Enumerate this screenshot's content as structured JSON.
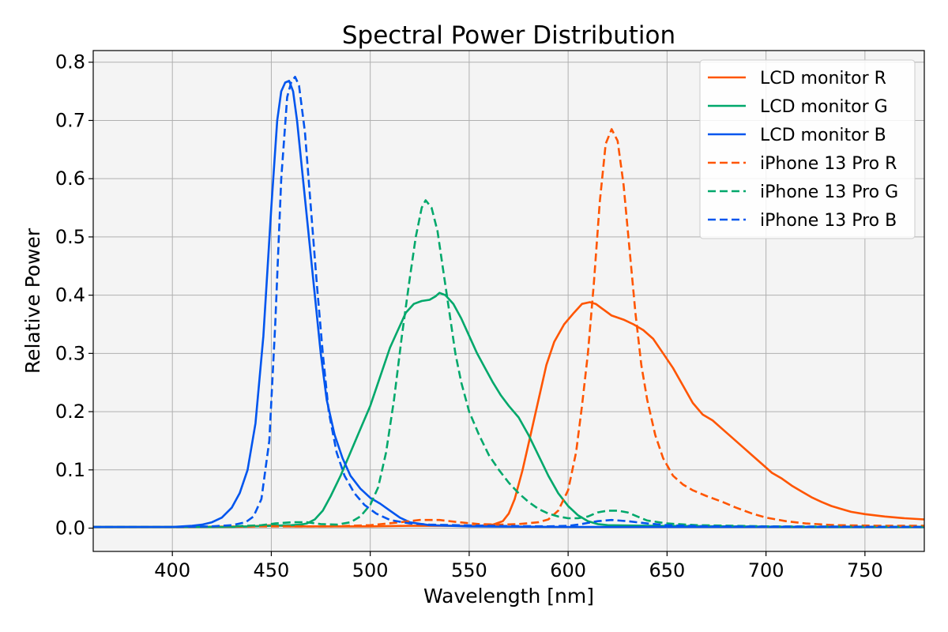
{
  "chart_data": {
    "type": "line",
    "title": "Spectral Power Distribution",
    "xlabel": "Wavelength [nm]",
    "ylabel": "Relative Power",
    "xlim": [
      360,
      780
    ],
    "ylim": [
      -0.04,
      0.82
    ],
    "xticks": [
      "400",
      "450",
      "500",
      "550",
      "600",
      "650",
      "700",
      "750"
    ],
    "yticks": [
      "0.0",
      "0.1",
      "0.2",
      "0.3",
      "0.4",
      "0.5",
      "0.6",
      "0.7",
      "0.8"
    ],
    "grid": true,
    "legend_position": "top-right",
    "series": [
      {
        "name": "LCD monitor R",
        "color": "#ff5500",
        "dash": "solid",
        "points": [
          [
            360,
            0.002
          ],
          [
            400,
            0.002
          ],
          [
            440,
            0.003
          ],
          [
            450,
            0.005
          ],
          [
            460,
            0.003
          ],
          [
            480,
            0.003
          ],
          [
            500,
            0.003
          ],
          [
            520,
            0.004
          ],
          [
            540,
            0.004
          ],
          [
            555,
            0.004
          ],
          [
            562,
            0.006
          ],
          [
            567,
            0.012
          ],
          [
            570,
            0.025
          ],
          [
            573,
            0.05
          ],
          [
            577,
            0.1
          ],
          [
            581,
            0.16
          ],
          [
            585,
            0.22
          ],
          [
            589,
            0.28
          ],
          [
            593,
            0.32
          ],
          [
            598,
            0.35
          ],
          [
            603,
            0.37
          ],
          [
            607,
            0.385
          ],
          [
            611,
            0.388
          ],
          [
            614,
            0.385
          ],
          [
            618,
            0.375
          ],
          [
            622,
            0.365
          ],
          [
            628,
            0.358
          ],
          [
            633,
            0.35
          ],
          [
            638,
            0.34
          ],
          [
            643,
            0.325
          ],
          [
            648,
            0.3
          ],
          [
            653,
            0.275
          ],
          [
            658,
            0.245
          ],
          [
            663,
            0.215
          ],
          [
            668,
            0.195
          ],
          [
            673,
            0.185
          ],
          [
            678,
            0.17
          ],
          [
            683,
            0.155
          ],
          [
            688,
            0.14
          ],
          [
            693,
            0.125
          ],
          [
            698,
            0.11
          ],
          [
            703,
            0.095
          ],
          [
            708,
            0.085
          ],
          [
            713,
            0.073
          ],
          [
            718,
            0.063
          ],
          [
            723,
            0.053
          ],
          [
            728,
            0.045
          ],
          [
            733,
            0.038
          ],
          [
            738,
            0.033
          ],
          [
            743,
            0.028
          ],
          [
            750,
            0.024
          ],
          [
            760,
            0.02
          ],
          [
            770,
            0.017
          ],
          [
            780,
            0.015
          ]
        ]
      },
      {
        "name": "LCD monitor G",
        "color": "#00a86b",
        "dash": "solid",
        "points": [
          [
            360,
            0.002
          ],
          [
            400,
            0.002
          ],
          [
            430,
            0.002
          ],
          [
            440,
            0.003
          ],
          [
            450,
            0.004
          ],
          [
            460,
            0.005
          ],
          [
            465,
            0.006
          ],
          [
            468,
            0.008
          ],
          [
            472,
            0.015
          ],
          [
            476,
            0.03
          ],
          [
            480,
            0.055
          ],
          [
            485,
            0.09
          ],
          [
            490,
            0.13
          ],
          [
            495,
            0.17
          ],
          [
            500,
            0.21
          ],
          [
            505,
            0.26
          ],
          [
            510,
            0.31
          ],
          [
            514,
            0.34
          ],
          [
            518,
            0.37
          ],
          [
            522,
            0.385
          ],
          [
            526,
            0.39
          ],
          [
            530,
            0.392
          ],
          [
            533,
            0.398
          ],
          [
            535,
            0.404
          ],
          [
            538,
            0.4
          ],
          [
            542,
            0.385
          ],
          [
            546,
            0.36
          ],
          [
            550,
            0.33
          ],
          [
            554,
            0.3
          ],
          [
            558,
            0.275
          ],
          [
            562,
            0.25
          ],
          [
            566,
            0.228
          ],
          [
            570,
            0.21
          ],
          [
            575,
            0.19
          ],
          [
            580,
            0.16
          ],
          [
            585,
            0.125
          ],
          [
            590,
            0.09
          ],
          [
            595,
            0.06
          ],
          [
            600,
            0.038
          ],
          [
            605,
            0.022
          ],
          [
            610,
            0.012
          ],
          [
            615,
            0.007
          ],
          [
            620,
            0.005
          ],
          [
            640,
            0.004
          ],
          [
            680,
            0.003
          ],
          [
            720,
            0.002
          ],
          [
            780,
            0.002
          ]
        ]
      },
      {
        "name": "LCD monitor B",
        "color": "#0055ee",
        "dash": "solid",
        "points": [
          [
            360,
            0.002
          ],
          [
            400,
            0.002
          ],
          [
            410,
            0.004
          ],
          [
            415,
            0.006
          ],
          [
            420,
            0.01
          ],
          [
            425,
            0.018
          ],
          [
            430,
            0.035
          ],
          [
            434,
            0.06
          ],
          [
            438,
            0.1
          ],
          [
            442,
            0.18
          ],
          [
            446,
            0.33
          ],
          [
            450,
            0.55
          ],
          [
            453,
            0.7
          ],
          [
            455,
            0.75
          ],
          [
            457,
            0.765
          ],
          [
            459,
            0.768
          ],
          [
            461,
            0.75
          ],
          [
            463,
            0.7
          ],
          [
            466,
            0.6
          ],
          [
            469,
            0.5
          ],
          [
            472,
            0.4
          ],
          [
            475,
            0.3
          ],
          [
            478,
            0.22
          ],
          [
            482,
            0.16
          ],
          [
            486,
            0.12
          ],
          [
            490,
            0.09
          ],
          [
            495,
            0.068
          ],
          [
            500,
            0.052
          ],
          [
            505,
            0.042
          ],
          [
            510,
            0.03
          ],
          [
            515,
            0.018
          ],
          [
            520,
            0.01
          ],
          [
            530,
            0.005
          ],
          [
            550,
            0.003
          ],
          [
            600,
            0.002
          ],
          [
            650,
            0.002
          ],
          [
            780,
            0.002
          ]
        ]
      },
      {
        "name": "iPhone 13 Pro R",
        "color": "#ff5500",
        "dash": "dashed",
        "points": [
          [
            360,
            0.002
          ],
          [
            400,
            0.002
          ],
          [
            450,
            0.003
          ],
          [
            480,
            0.003
          ],
          [
            500,
            0.005
          ],
          [
            515,
            0.01
          ],
          [
            525,
            0.014
          ],
          [
            535,
            0.014
          ],
          [
            545,
            0.01
          ],
          [
            555,
            0.007
          ],
          [
            565,
            0.006
          ],
          [
            575,
            0.007
          ],
          [
            585,
            0.01
          ],
          [
            590,
            0.015
          ],
          [
            595,
            0.03
          ],
          [
            600,
            0.065
          ],
          [
            604,
            0.13
          ],
          [
            607,
            0.21
          ],
          [
            610,
            0.3
          ],
          [
            613,
            0.42
          ],
          [
            616,
            0.56
          ],
          [
            619,
            0.66
          ],
          [
            622,
            0.685
          ],
          [
            625,
            0.665
          ],
          [
            628,
            0.59
          ],
          [
            631,
            0.48
          ],
          [
            634,
            0.37
          ],
          [
            637,
            0.28
          ],
          [
            640,
            0.22
          ],
          [
            644,
            0.16
          ],
          [
            648,
            0.12
          ],
          [
            653,
            0.09
          ],
          [
            658,
            0.075
          ],
          [
            663,
            0.065
          ],
          [
            670,
            0.055
          ],
          [
            678,
            0.045
          ],
          [
            685,
            0.035
          ],
          [
            693,
            0.025
          ],
          [
            700,
            0.018
          ],
          [
            710,
            0.012
          ],
          [
            720,
            0.008
          ],
          [
            735,
            0.005
          ],
          [
            760,
            0.004
          ],
          [
            780,
            0.004
          ]
        ]
      },
      {
        "name": "iPhone 13 Pro G",
        "color": "#00a86b",
        "dash": "dashed",
        "points": [
          [
            360,
            0.002
          ],
          [
            400,
            0.002
          ],
          [
            430,
            0.003
          ],
          [
            445,
            0.005
          ],
          [
            452,
            0.008
          ],
          [
            460,
            0.01
          ],
          [
            468,
            0.01
          ],
          [
            475,
            0.007
          ],
          [
            483,
            0.006
          ],
          [
            490,
            0.01
          ],
          [
            495,
            0.02
          ],
          [
            500,
            0.04
          ],
          [
            504,
            0.07
          ],
          [
            508,
            0.13
          ],
          [
            512,
            0.22
          ],
          [
            516,
            0.33
          ],
          [
            520,
            0.43
          ],
          [
            523,
            0.5
          ],
          [
            526,
            0.55
          ],
          [
            528,
            0.563
          ],
          [
            531,
            0.55
          ],
          [
            534,
            0.51
          ],
          [
            537,
            0.44
          ],
          [
            540,
            0.37
          ],
          [
            543,
            0.3
          ],
          [
            546,
            0.25
          ],
          [
            550,
            0.2
          ],
          [
            555,
            0.16
          ],
          [
            560,
            0.125
          ],
          [
            565,
            0.1
          ],
          [
            570,
            0.078
          ],
          [
            575,
            0.06
          ],
          [
            580,
            0.045
          ],
          [
            585,
            0.033
          ],
          [
            590,
            0.025
          ],
          [
            595,
            0.02
          ],
          [
            600,
            0.017
          ],
          [
            605,
            0.017
          ],
          [
            610,
            0.02
          ],
          [
            615,
            0.027
          ],
          [
            620,
            0.03
          ],
          [
            625,
            0.03
          ],
          [
            630,
            0.027
          ],
          [
            635,
            0.02
          ],
          [
            640,
            0.013
          ],
          [
            650,
            0.008
          ],
          [
            665,
            0.005
          ],
          [
            700,
            0.003
          ],
          [
            780,
            0.002
          ]
        ]
      },
      {
        "name": "iPhone 13 Pro B",
        "color": "#0055ee",
        "dash": "dashed",
        "points": [
          [
            360,
            0.002
          ],
          [
            400,
            0.002
          ],
          [
            420,
            0.003
          ],
          [
            430,
            0.005
          ],
          [
            437,
            0.01
          ],
          [
            441,
            0.02
          ],
          [
            445,
            0.05
          ],
          [
            449,
            0.15
          ],
          [
            452,
            0.35
          ],
          [
            455,
            0.6
          ],
          [
            458,
            0.74
          ],
          [
            460,
            0.765
          ],
          [
            462,
            0.775
          ],
          [
            464,
            0.76
          ],
          [
            467,
            0.68
          ],
          [
            470,
            0.55
          ],
          [
            473,
            0.42
          ],
          [
            476,
            0.3
          ],
          [
            479,
            0.2
          ],
          [
            483,
            0.13
          ],
          [
            487,
            0.09
          ],
          [
            492,
            0.06
          ],
          [
            497,
            0.04
          ],
          [
            503,
            0.025
          ],
          [
            510,
            0.014
          ],
          [
            520,
            0.008
          ],
          [
            530,
            0.006
          ],
          [
            560,
            0.004
          ],
          [
            590,
            0.003
          ],
          [
            600,
            0.004
          ],
          [
            605,
            0.006
          ],
          [
            610,
            0.009
          ],
          [
            615,
            0.012
          ],
          [
            622,
            0.014
          ],
          [
            630,
            0.012
          ],
          [
            640,
            0.008
          ],
          [
            650,
            0.005
          ],
          [
            670,
            0.003
          ],
          [
            780,
            0.002
          ]
        ]
      }
    ]
  }
}
